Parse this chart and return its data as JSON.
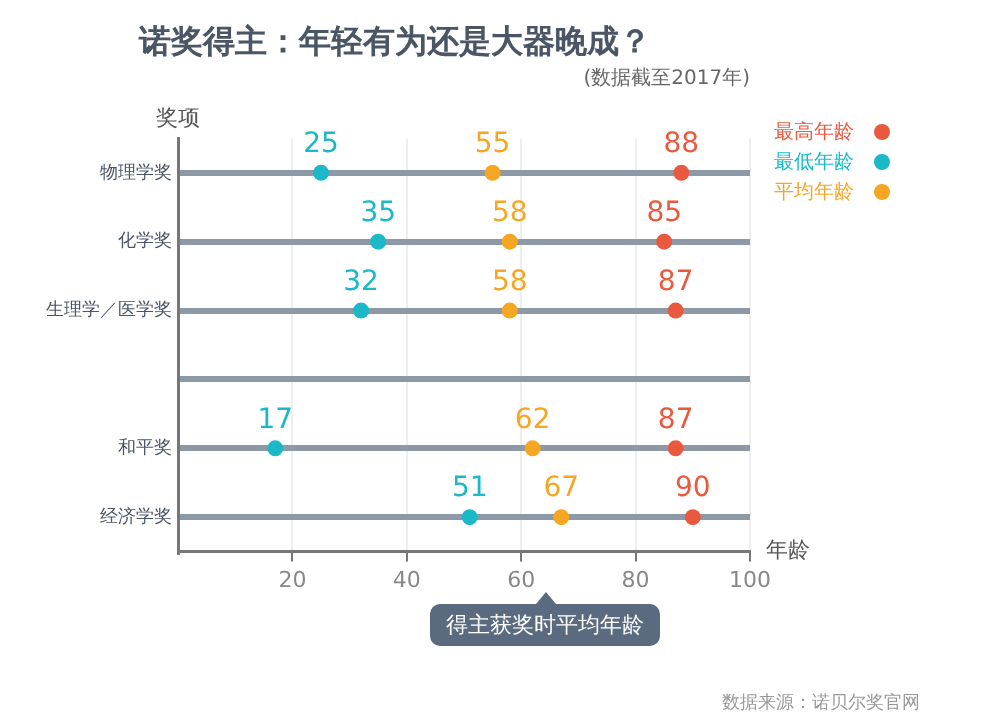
{
  "chart_data": {
    "type": "scatter",
    "orientation": "horizontal",
    "title": "诺奖得主：年轻有为还是大器晚成？",
    "subtitle": "(数据截至2017年)",
    "xlabel": "年龄",
    "ylabel": "奖项",
    "categories": [
      "物理学奖",
      "化学奖",
      "生理学／医学奖",
      null,
      "和平奖",
      "经济学奖"
    ],
    "series": [
      {
        "name": "最高年龄",
        "color": "#e8593f",
        "values": [
          88,
          85,
          87,
          null,
          87,
          90
        ]
      },
      {
        "name": "最低年龄",
        "color": "#1bb8c8",
        "values": [
          25,
          35,
          32,
          null,
          17,
          51
        ]
      },
      {
        "name": "平均年龄",
        "color": "#f5a623",
        "values": [
          55,
          58,
          58,
          null,
          62,
          67
        ]
      }
    ],
    "xlim": [
      0,
      100
    ],
    "xticks": [
      20,
      40,
      60,
      80,
      100
    ],
    "grid": true,
    "legend": "top right",
    "marker": "circle",
    "data_labels": true,
    "annotations": [
      "得主获奖时平均年龄",
      "数据来源：诺贝尔奖官网"
    ]
  }
}
